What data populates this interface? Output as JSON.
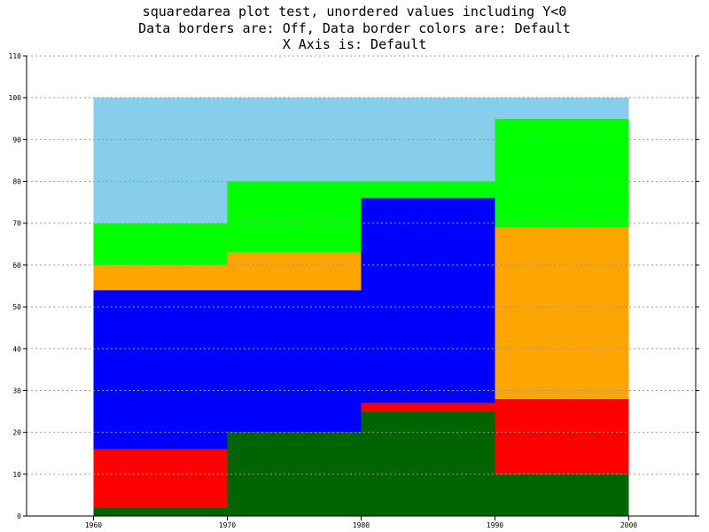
{
  "chart_data": {
    "type": "area",
    "style": "squared-stacked",
    "title_lines": [
      "squaredarea plot test, unordered values including Y<0",
      "Data borders are: Off, Data border colors are: Default",
      "X Axis is: Default"
    ],
    "xlabel": "",
    "ylabel": "",
    "x": [
      1960,
      1970,
      1980,
      1990,
      2000
    ],
    "x_ticks": [
      "1960",
      "1970",
      "1980",
      "1990",
      "2000"
    ],
    "xlim": [
      1955,
      2005
    ],
    "ylim": [
      0,
      110
    ],
    "y_ticks": [
      "0",
      "10",
      "20",
      "30",
      "40",
      "50",
      "60",
      "70",
      "80",
      "90",
      "100",
      "110"
    ],
    "grid": "horizontal-dotted",
    "legend": "none",
    "series": [
      {
        "color": "#006400",
        "values": [
          2,
          20,
          25,
          10,
          10
        ]
      },
      {
        "color": "#ff0000",
        "values": [
          14,
          0,
          2,
          18,
          18
        ]
      },
      {
        "color": "#0000ff",
        "values": [
          38,
          34,
          49,
          0,
          0
        ]
      },
      {
        "color": "#ffa500",
        "values": [
          6,
          9,
          0,
          41,
          41
        ]
      },
      {
        "color": "#00ff00",
        "values": [
          10,
          17,
          4,
          26,
          26
        ]
      },
      {
        "color": "#87ceeb",
        "values": [
          30,
          20,
          20,
          5,
          5
        ]
      }
    ]
  }
}
